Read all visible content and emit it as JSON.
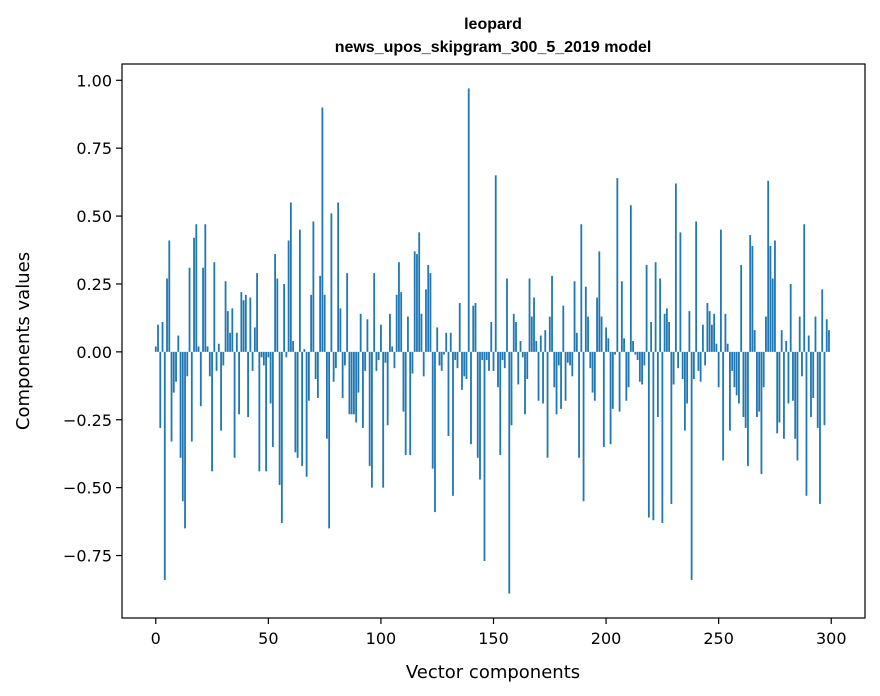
{
  "colors": {
    "bar": "#1f77b4",
    "axis": "#000000",
    "background": "#ffffff"
  },
  "chart_data": {
    "type": "bar",
    "title": "leopard",
    "subtitle": "news_upos_skipgram_300_5_2019 model",
    "xlabel": "Vector components",
    "ylabel": "Components values",
    "xlim": [
      -15,
      315
    ],
    "ylim": [
      -0.98,
      1.06
    ],
    "xticks": [
      0,
      50,
      100,
      150,
      200,
      250,
      300
    ],
    "xtick_labels": [
      "0",
      "50",
      "100",
      "150",
      "200",
      "250",
      "300"
    ],
    "yticks": [
      -0.75,
      -0.5,
      -0.25,
      0.0,
      0.25,
      0.5,
      0.75,
      1.0
    ],
    "ytick_labels": [
      "−0.75",
      "−0.50",
      "−0.25",
      "0.00",
      "0.25",
      "0.50",
      "0.75",
      "1.00"
    ],
    "grid": false,
    "x": "component index 0..299",
    "values": [
      0.02,
      0.1,
      -0.28,
      0.11,
      -0.84,
      0.27,
      0.41,
      -0.33,
      -0.15,
      -0.11,
      0.06,
      -0.39,
      -0.55,
      -0.65,
      -0.09,
      0.31,
      -0.33,
      0.42,
      0.47,
      0.02,
      -0.2,
      0.31,
      0.47,
      0.02,
      -0.09,
      -0.44,
      0.33,
      -0.07,
      0.03,
      -0.29,
      -0.05,
      0.26,
      0.15,
      0.07,
      0.16,
      -0.39,
      0.07,
      -0.23,
      0.22,
      0.19,
      0.21,
      -0.24,
      0.2,
      -0.07,
      0.09,
      0.29,
      -0.44,
      -0.02,
      -0.05,
      -0.44,
      -0.02,
      -0.19,
      -0.35,
      0.36,
      0.27,
      -0.49,
      -0.63,
      0.25,
      -0.02,
      0.41,
      0.55,
      0.04,
      -0.37,
      -0.39,
      0.45,
      -0.42,
      0.01,
      -0.46,
      -0.18,
      0.21,
      0.48,
      -0.1,
      -0.17,
      0.28,
      0.9,
      0.21,
      -0.32,
      -0.65,
      0.51,
      -0.11,
      -0.06,
      0.55,
      0.16,
      -0.17,
      -0.05,
      0.29,
      -0.23,
      -0.23,
      -0.23,
      -0.26,
      -0.15,
      0.14,
      -0.28,
      -0.07,
      0.12,
      -0.42,
      -0.5,
      0.29,
      -0.07,
      -0.03,
      0.1,
      -0.5,
      -0.04,
      -0.27,
      0.14,
      0.02,
      -0.06,
      0.21,
      0.33,
      0.22,
      -0.22,
      -0.38,
      0.13,
      -0.38,
      -0.08,
      0.37,
      0.36,
      0.44,
      0.14,
      -0.09,
      0.23,
      0.32,
      0.29,
      -0.43,
      -0.59,
      0.09,
      -0.05,
      -0.07,
      -0.01,
      0.07,
      -0.31,
      0.07,
      -0.53,
      -0.03,
      -0.06,
      0.18,
      -0.14,
      -0.09,
      -0.1,
      0.97,
      -0.34,
      0.17,
      0.18,
      -0.39,
      -0.47,
      -0.03,
      -0.77,
      -0.03,
      -0.07,
      0.11,
      -0.07,
      0.65,
      -0.13,
      -0.38,
      -0.03,
      -0.06,
      0.27,
      -0.89,
      -0.27,
      0.14,
      0.11,
      -0.12,
      0.04,
      -0.02,
      -0.23,
      -0.1,
      0.27,
      0.13,
      0.2,
      0.04,
      -0.18,
      0.06,
      -0.19,
      0.08,
      -0.39,
      0.13,
      0.28,
      -0.13,
      -0.23,
      -0.05,
      -0.21,
      0.17,
      -0.18,
      -0.04,
      -0.05,
      -0.09,
      0.26,
      0.07,
      -0.39,
      0.47,
      -0.55,
      0.24,
      0.13,
      -0.06,
      -0.15,
      -0.18,
      0.2,
      0.37,
      0.13,
      -0.35,
      0.09,
      0.05,
      -0.34,
      -0.21,
      -0.01,
      0.64,
      -0.22,
      0.26,
      0.05,
      -0.18,
      -0.13,
      0.54,
      0.04,
      -0.01,
      -0.03,
      -0.11,
      -0.12,
      -0.05,
      0.32,
      -0.61,
      0.11,
      -0.62,
      0.33,
      -0.24,
      0.27,
      -0.63,
      0.14,
      0.16,
      0.11,
      -0.56,
      -0.12,
      0.62,
      -0.06,
      0.44,
      -0.1,
      -0.29,
      -0.19,
      0.15,
      -0.84,
      -0.1,
      0.48,
      -0.07,
      -0.11,
      0.1,
      -0.05,
      0.18,
      0.15,
      0.1,
      0.14,
      0.03,
      -0.13,
      0.45,
      -0.4,
      0.14,
      0.03,
      -0.29,
      -0.07,
      -0.13,
      -0.16,
      -0.19,
      0.32,
      -0.24,
      -0.28,
      -0.42,
      0.43,
      0.39,
      0.08,
      -0.24,
      -0.22,
      -0.45,
      -0.13,
      0.13,
      0.63,
      0.39,
      0.27,
      0.41,
      -0.3,
      -0.26,
      0.08,
      -0.32,
      0.04,
      -0.19,
      0.25,
      -0.18,
      -0.32,
      -0.4,
      0.13,
      -0.09,
      0.47,
      -0.53,
      0.06,
      -0.24,
      -0.17,
      0.13,
      -0.28,
      -0.56,
      0.23,
      -0.27,
      0.12,
      0.08
    ]
  }
}
